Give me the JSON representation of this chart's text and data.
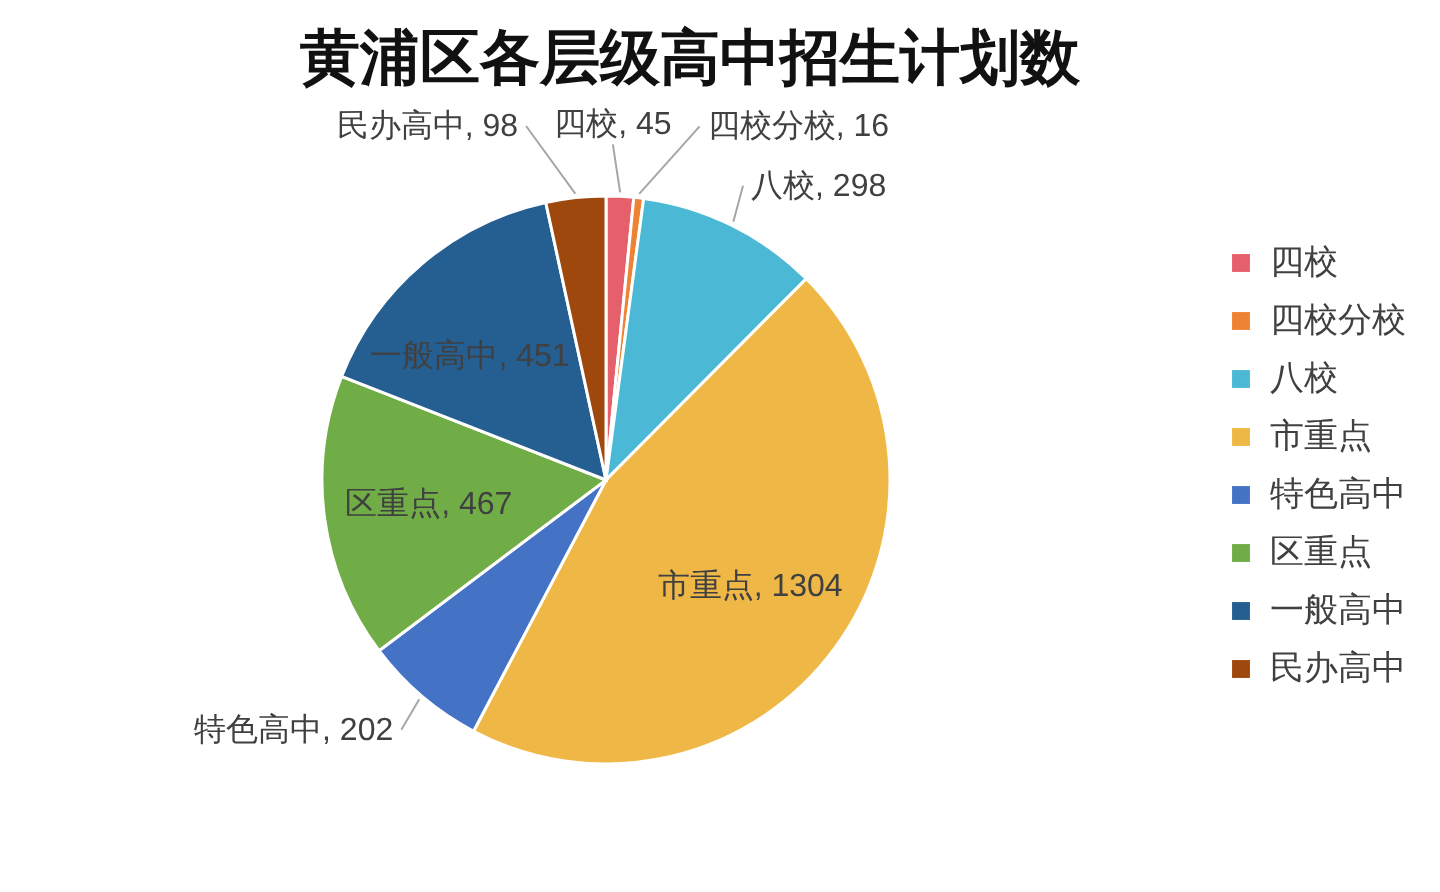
{
  "chart_data": {
    "type": "pie",
    "title": "黄浦区各层级高中招生计划数",
    "categories": [
      "四校",
      "四校分校",
      "八校",
      "市重点",
      "特色高中",
      "区重点",
      "一般高中",
      "民办高中"
    ],
    "values": [
      45,
      16,
      298,
      1304,
      202,
      467,
      451,
      98
    ],
    "colors": [
      "#e5606a",
      "#ee8333",
      "#4bb8d6",
      "#efb846",
      "#4472c4",
      "#70ad47",
      "#255e91",
      "#9e480e"
    ],
    "value_labels": [
      "四校, 45",
      "四校分校, 16",
      "八校, 298",
      "市重点, 1304",
      "特色高中, 202",
      "区重点, 467",
      "一般高中, 451",
      "民办高中, 98"
    ],
    "legend": "right"
  }
}
